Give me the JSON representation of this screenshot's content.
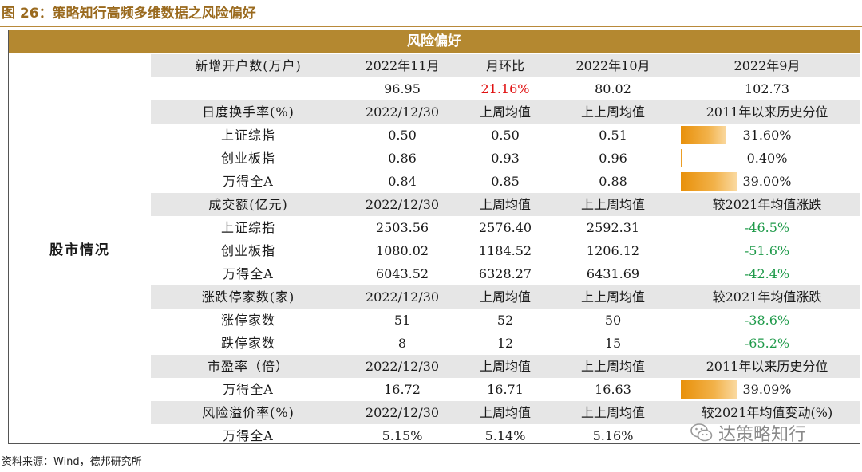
{
  "figure_title": "图 26：策略知行高频多维数据之风险偏好",
  "table_title": "风险偏好",
  "section_label": "股市情况",
  "rows": [
    {
      "type": "header",
      "cells": [
        "新增开户数(万户)",
        "2022年11月",
        "月环比",
        "2022年10月",
        "2022年9月"
      ]
    },
    {
      "type": "data",
      "cells": [
        "",
        "96.95",
        "21.16%",
        "80.02",
        "102.73"
      ]
    },
    {
      "type": "header",
      "cells": [
        "日度换手率(%)",
        "2022/12/30",
        "上周均值",
        "上上周均值",
        "2011年以来历史分位"
      ]
    },
    {
      "type": "data",
      "cells": [
        "上证综指",
        "0.50",
        "0.50",
        "0.51",
        "31.60%"
      ],
      "percentile": 0.316
    },
    {
      "type": "data",
      "cells": [
        "创业板指",
        "0.86",
        "0.93",
        "0.96",
        "0.40%"
      ],
      "percentile": 0.004
    },
    {
      "type": "data",
      "cells": [
        "万得全A",
        "0.84",
        "0.85",
        "0.88",
        "39.00%"
      ],
      "percentile": 0.39
    },
    {
      "type": "header",
      "cells": [
        "成交额(亿元)",
        "2022/12/30",
        "上周均值",
        "上上周均值",
        "较2021年均值涨跌"
      ]
    },
    {
      "type": "data",
      "cells": [
        "上证综指",
        "2503.56",
        "2576.40",
        "2592.31",
        "-46.5%"
      ]
    },
    {
      "type": "data",
      "cells": [
        "创业板指",
        "1080.02",
        "1184.52",
        "1206.12",
        "-51.6%"
      ]
    },
    {
      "type": "data",
      "cells": [
        "万得全A",
        "6043.52",
        "6328.27",
        "6431.69",
        "-42.4%"
      ]
    },
    {
      "type": "header",
      "cells": [
        "涨跌停家数(家)",
        "2022/12/30",
        "上周均值",
        "上上周均值",
        "较2021年均值涨跌"
      ]
    },
    {
      "type": "data",
      "cells": [
        "涨停家数",
        "51",
        "52",
        "50",
        "-38.6%"
      ]
    },
    {
      "type": "data",
      "cells": [
        "跌停家数",
        "8",
        "12",
        "15",
        "-65.2%"
      ]
    },
    {
      "type": "header",
      "cells": [
        "市盈率（倍）",
        "2022/12/30",
        "上周均值",
        "上上周均值",
        "2011年以来历史分位"
      ]
    },
    {
      "type": "data",
      "cells": [
        "万得全A",
        "16.72",
        "16.71",
        "16.63",
        "39.09%"
      ],
      "percentile": 0.3909
    },
    {
      "type": "header",
      "cells": [
        "风险溢价率(%)",
        "2022/12/30",
        "上周均值",
        "上上周均值",
        "较2021年均值变动(%)"
      ]
    },
    {
      "type": "data",
      "cells": [
        "万得全A",
        "5.15%",
        "5.14%",
        "5.16%",
        ""
      ]
    }
  ],
  "highlight": {
    "mom_cell_color": "#e01010",
    "negative_color": "#1f9a4a",
    "bar_color": "#f2b24a"
  },
  "source": "资料来源：Wind，德邦研究所",
  "watermark": "达策略知行",
  "watermark_icon": "wechat-icon"
}
